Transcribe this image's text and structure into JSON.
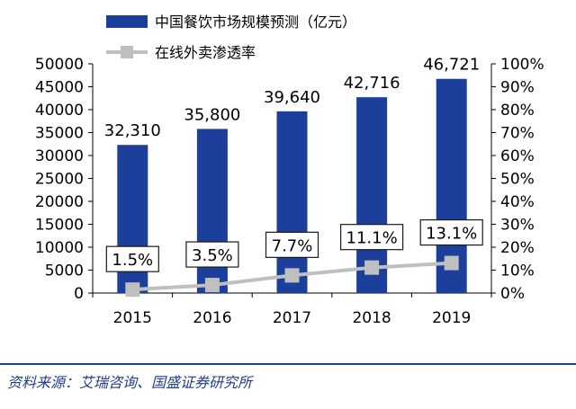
{
  "chart_data": {
    "type": "bar",
    "categories": [
      "2015",
      "2016",
      "2017",
      "2018",
      "2019"
    ],
    "series": [
      {
        "name": "中国餐饮市场规模预测（亿元）",
        "type": "bar",
        "axis": "left",
        "values": [
          32310,
          35800,
          39640,
          42716,
          46721
        ],
        "labels": [
          "32,310",
          "35,800",
          "39,640",
          "42,716",
          "46,721"
        ]
      },
      {
        "name": "在线外卖渗透率",
        "type": "line",
        "axis": "right",
        "values": [
          1.5,
          3.5,
          7.7,
          11.1,
          13.1
        ],
        "labels": [
          "1.5%",
          "3.5%",
          "7.7%",
          "11.1%",
          "13.1%"
        ]
      }
    ],
    "y_left": {
      "min": 0,
      "max": 50000,
      "step": 5000,
      "ticks": [
        "0",
        "5000",
        "10000",
        "15000",
        "20000",
        "25000",
        "30000",
        "35000",
        "40000",
        "45000",
        "50000"
      ]
    },
    "y_right": {
      "min": 0,
      "max": 100,
      "step": 10,
      "ticks": [
        "0%",
        "10%",
        "20%",
        "30%",
        "40%",
        "50%",
        "60%",
        "70%",
        "80%",
        "90%",
        "100%"
      ]
    },
    "legend_position": "top-left",
    "grid": false,
    "colors": {
      "bar": "#1b3f9a",
      "line": "#bfbfbf",
      "label_box_border": "#1a1a1a",
      "source": "#1f3d8a"
    }
  },
  "source": "资料来源：艾瑞咨询、国盛证券研究所"
}
